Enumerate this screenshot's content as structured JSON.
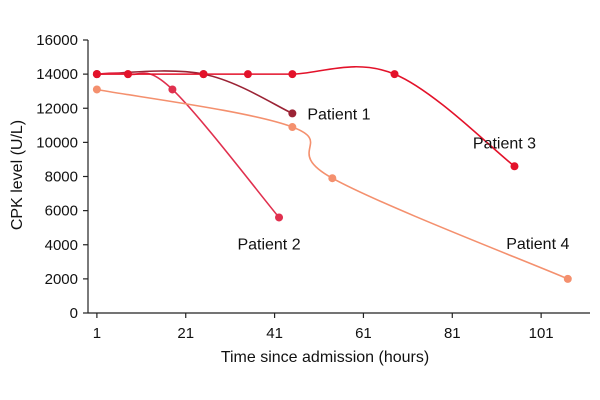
{
  "chart_data": {
    "type": "line",
    "title": "",
    "xlabel": "Time since admission (hours)",
    "ylabel": "CPK level (U/L)",
    "xlim": [
      -1,
      112
    ],
    "ylim": [
      0,
      16000
    ],
    "x_ticks": [
      1,
      21,
      41,
      61,
      81,
      101
    ],
    "y_ticks": [
      0,
      2000,
      4000,
      6000,
      8000,
      10000,
      12000,
      14000,
      16000
    ],
    "grid": false,
    "legend": "none",
    "series": [
      {
        "name": "Patient 1",
        "color": "#9b2335",
        "x": [
          1,
          25,
          45
        ],
        "y": [
          14000,
          14000,
          11700
        ]
      },
      {
        "name": "Patient 2",
        "color": "#e0304e",
        "x": [
          1,
          8,
          18,
          42
        ],
        "y": [
          14000,
          14000,
          13100,
          5600
        ]
      },
      {
        "name": "Patient 3",
        "color": "#e3122a",
        "x": [
          1,
          8,
          25,
          35,
          45,
          68,
          95
        ],
        "y": [
          14000,
          14000,
          14000,
          14000,
          14000,
          14000,
          8600
        ]
      },
      {
        "name": "Patient 4",
        "color": "#f4906e",
        "x": [
          1,
          45,
          54,
          107
        ],
        "y": [
          13100,
          10900,
          7900,
          2000
        ]
      }
    ]
  }
}
